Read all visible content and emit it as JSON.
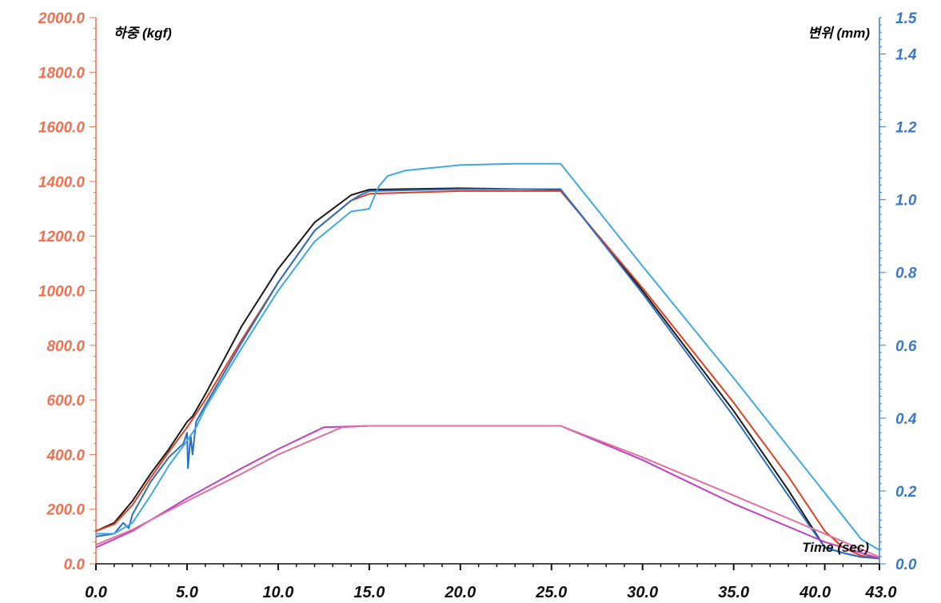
{
  "chart_data": {
    "type": "line",
    "title": "",
    "xlabel": "Time (sec)",
    "ylabel_left": "하중 (kgf)",
    "ylabel_right": "변위 (mm)",
    "xlim": [
      0,
      43
    ],
    "ylim_left": [
      0,
      2000
    ],
    "ylim_right": [
      0,
      1.5
    ],
    "x_ticks": [
      "0.0",
      "5.0",
      "10.0",
      "15.0",
      "20.0",
      "25.0",
      "30.0",
      "35.0",
      "40.0",
      "43.0"
    ],
    "x_tick_values": [
      0,
      5,
      10,
      15,
      20,
      25,
      30,
      35,
      40,
      43
    ],
    "y_left_ticks": [
      "0.0",
      "200.0",
      "400.0",
      "600.0",
      "800.0",
      "1000.0",
      "1200.0",
      "1400.0",
      "1600.0",
      "1800.0",
      "2000.0"
    ],
    "y_right_ticks": [
      "0.0",
      "0.2",
      "0.4",
      "0.6",
      "0.8",
      "1.0",
      "1.2",
      "1.4",
      "1.5"
    ],
    "y_right_tick_values": [
      0,
      0.2,
      0.4,
      0.6,
      0.8,
      1.0,
      1.2,
      1.4,
      1.5
    ],
    "grid": false,
    "legend": "none",
    "colors": {
      "left_axis": "#f07050",
      "right_axis": "#3a78c8",
      "x_axis": "#111111"
    },
    "series": [
      {
        "color": "#1a1a1a",
        "axis": "left",
        "points": [
          [
            0,
            120
          ],
          [
            1,
            150
          ],
          [
            2,
            230
          ],
          [
            3,
            330
          ],
          [
            4,
            420
          ],
          [
            5,
            520
          ],
          [
            5.3,
            540
          ],
          [
            6,
            620
          ],
          [
            8,
            870
          ],
          [
            10,
            1080
          ],
          [
            12,
            1250
          ],
          [
            14,
            1350
          ],
          [
            15,
            1370
          ],
          [
            20,
            1375
          ],
          [
            25.5,
            1370
          ],
          [
            30,
            1000
          ],
          [
            35,
            560
          ],
          [
            38,
            270
          ],
          [
            40,
            60
          ],
          [
            41,
            40
          ],
          [
            42,
            25
          ],
          [
            43,
            20
          ]
        ]
      },
      {
        "color": "#e04020",
        "axis": "left",
        "points": [
          [
            0,
            120
          ],
          [
            1,
            145
          ],
          [
            2,
            215
          ],
          [
            3,
            315
          ],
          [
            4,
            410
          ],
          [
            5,
            500
          ],
          [
            6,
            600
          ],
          [
            8,
            820
          ],
          [
            10,
            1030
          ],
          [
            12,
            1220
          ],
          [
            14,
            1330
          ],
          [
            15,
            1355
          ],
          [
            20,
            1365
          ],
          [
            25.5,
            1365
          ],
          [
            30,
            1010
          ],
          [
            35,
            590
          ],
          [
            38,
            320
          ],
          [
            40,
            120
          ],
          [
            41,
            60
          ],
          [
            42,
            30
          ],
          [
            43,
            20
          ]
        ]
      },
      {
        "color": "#2a6fc0",
        "axis": "left",
        "points": [
          [
            0,
            100
          ],
          [
            1,
            110
          ],
          [
            1.5,
            150
          ],
          [
            1.8,
            130
          ],
          [
            2,
            180
          ],
          [
            3,
            300
          ],
          [
            4,
            390
          ],
          [
            4.8,
            440
          ],
          [
            5,
            480
          ],
          [
            5.05,
            350
          ],
          [
            5.2,
            470
          ],
          [
            5.3,
            400
          ],
          [
            5.5,
            520
          ],
          [
            6,
            580
          ],
          [
            8,
            810
          ],
          [
            10,
            1030
          ],
          [
            12,
            1220
          ],
          [
            14,
            1330
          ],
          [
            14.5,
            1350
          ],
          [
            15,
            1365
          ],
          [
            20,
            1372
          ],
          [
            25.5,
            1372
          ],
          [
            30,
            990
          ],
          [
            35,
            540
          ],
          [
            38,
            250
          ],
          [
            40,
            60
          ],
          [
            41,
            40
          ],
          [
            42,
            25
          ],
          [
            43,
            20
          ]
        ]
      },
      {
        "color": "#40a8e0",
        "axis": "left",
        "points": [
          [
            0,
            110
          ],
          [
            1,
            110
          ],
          [
            2,
            150
          ],
          [
            3,
            250
          ],
          [
            4,
            360
          ],
          [
            5,
            450
          ],
          [
            5.5,
            500
          ],
          [
            6,
            570
          ],
          [
            8,
            790
          ],
          [
            10,
            1000
          ],
          [
            12,
            1180
          ],
          [
            14,
            1290
          ],
          [
            15,
            1300
          ],
          [
            15.5,
            1380
          ],
          [
            16,
            1420
          ],
          [
            17,
            1440
          ],
          [
            20,
            1460
          ],
          [
            23,
            1465
          ],
          [
            25.5,
            1465
          ],
          [
            30,
            1090
          ],
          [
            35,
            680
          ],
          [
            40,
            260
          ],
          [
            42,
            90
          ],
          [
            43,
            50
          ]
        ]
      },
      {
        "color": "#c040c0",
        "axis": "left",
        "points": [
          [
            0,
            60
          ],
          [
            2,
            120
          ],
          [
            5,
            240
          ],
          [
            8,
            350
          ],
          [
            10,
            420
          ],
          [
            12.5,
            500
          ],
          [
            15,
            505
          ],
          [
            20,
            505
          ],
          [
            25.5,
            505
          ],
          [
            30,
            380
          ],
          [
            35,
            220
          ],
          [
            40,
            80
          ],
          [
            43,
            20
          ]
        ]
      },
      {
        "color": "#e070a0",
        "axis": "left",
        "points": [
          [
            0,
            70
          ],
          [
            2,
            125
          ],
          [
            5,
            230
          ],
          [
            8,
            330
          ],
          [
            10,
            400
          ],
          [
            13.5,
            500
          ],
          [
            15,
            505
          ],
          [
            20,
            505
          ],
          [
            25.5,
            505
          ],
          [
            30,
            390
          ],
          [
            35,
            250
          ],
          [
            40,
            110
          ],
          [
            43,
            25
          ]
        ]
      }
    ]
  }
}
